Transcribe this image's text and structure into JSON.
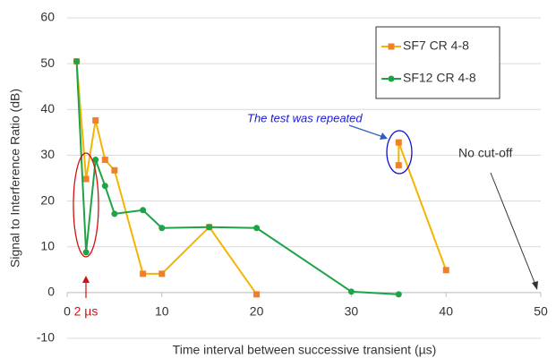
{
  "chart_data": {
    "type": "line",
    "xlabel": "Time interval between successive transient (µs)",
    "ylabel": "Signal to Interference Ratio (dB)",
    "xlim": [
      0,
      50
    ],
    "ylim": [
      -10,
      60
    ],
    "xticks": [
      0,
      10,
      20,
      30,
      40,
      50
    ],
    "yticks": [
      -10,
      0,
      10,
      20,
      30,
      40,
      50,
      60
    ],
    "grid": true,
    "legend": "upper right",
    "series": [
      {
        "name": "SF7 CR 4-8",
        "color": "#f5b400",
        "marker_color": "#f07f2a",
        "marker": "square",
        "x": [
          1,
          2,
          3,
          4,
          5,
          8,
          10,
          15,
          20,
          30,
          35,
          35,
          40
        ],
        "values": [
          50.5,
          24.8,
          37.6,
          29,
          26.7,
          4.1,
          4.1,
          14.3,
          -0.4,
          null,
          27.8,
          32.8,
          4.9
        ]
      },
      {
        "name": "SF12 CR 4-8",
        "color": "#1fa347",
        "marker_color": "#1fa347",
        "marker": "circle",
        "x": [
          1,
          2,
          3,
          4,
          5,
          8,
          10,
          15,
          20,
          30,
          35
        ],
        "values": [
          50.5,
          8.8,
          29,
          23.3,
          17.2,
          18,
          14.1,
          14.3,
          14.1,
          0.2,
          -0.4
        ]
      }
    ],
    "annotations": {
      "repeated": "The test was repeated",
      "cutoff": "No cut-off",
      "two_us": "2 µs"
    }
  }
}
